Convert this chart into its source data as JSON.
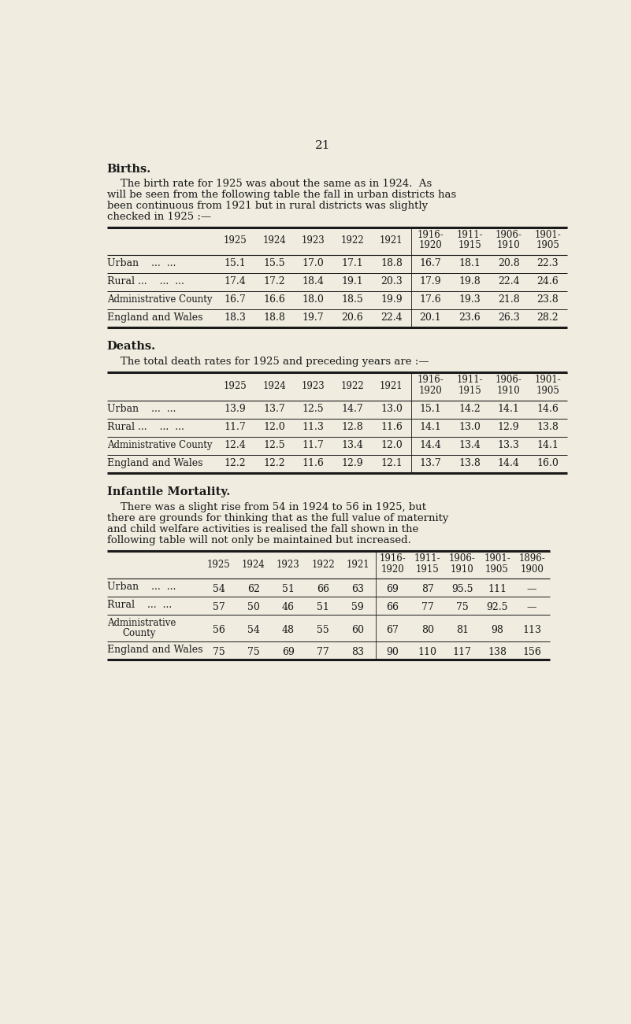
{
  "bg_color": "#f0ece0",
  "text_color": "#1a1a1a",
  "page_number": "21",
  "births_heading": "Births.",
  "births_para_lines": [
    "    The birth rate for 1925 was about the same as in 1924.  As",
    "will be seen from the following table the fall in urban districts has",
    "been continuous from 1921 but in rural districts was slightly",
    "checked in 1925 :—"
  ],
  "births_cols": [
    "1925",
    "1924",
    "1923",
    "1922",
    "1921",
    "1916-\n1920",
    "1911-\n1915",
    "1906-\n1910",
    "1901-\n1905"
  ],
  "births_rows": [
    [
      "Urban    ...  ...",
      "15.1",
      "15.5",
      "17.0",
      "17.1",
      "18.8",
      "16.7",
      "18.1",
      "20.8",
      "22.3"
    ],
    [
      "Rural ...    ...  ...",
      "17.4",
      "17.2",
      "18.4",
      "19.1",
      "20.3",
      "17.9",
      "19.8",
      "22.4",
      "24.6"
    ],
    [
      "Administrative County",
      "16.7",
      "16.6",
      "18.0",
      "18.5",
      "19.9",
      "17.6",
      "19.3",
      "21.8",
      "23.8"
    ],
    [
      "England and Wales",
      "18.3",
      "18.8",
      "19.7",
      "20.6",
      "22.4",
      "20.1",
      "23.6",
      "26.3",
      "28.2"
    ]
  ],
  "deaths_heading": "Deaths.",
  "deaths_para": "    The total death rates for 1925 and preceding years are :—",
  "deaths_cols": [
    "1925",
    "1924",
    "1923",
    "1922",
    "1921",
    "1916-\n1920",
    "1911-\n1915",
    "1906-\n1910",
    "1901-\n1905"
  ],
  "deaths_rows": [
    [
      "Urban    ...  ...",
      "13.9",
      "13.7",
      "12.5",
      "14.7",
      "13.0",
      "15.1",
      "14.2",
      "14.1",
      "14.6"
    ],
    [
      "Rural ...    ...  ...",
      "11.7",
      "12.0",
      "11.3",
      "12.8",
      "11.6",
      "14.1",
      "13.0",
      "12.9",
      "13.8"
    ],
    [
      "Administrative County",
      "12.4",
      "12.5",
      "11.7",
      "13.4",
      "12.0",
      "14.4",
      "13.4",
      "13.3",
      "14.1"
    ],
    [
      "England and Wales",
      "12.2",
      "12.2",
      "11.6",
      "12.9",
      "12.1",
      "13.7",
      "13.8",
      "14.4",
      "16.0"
    ]
  ],
  "infant_heading": "Infantile Mortality.",
  "infant_para_lines": [
    "    There was a slight rise from 54 in 1924 to 56 in 1925, but",
    "there are grounds for thinking that as the full value of maternity",
    "and child welfare activities is realised the fall shown in the",
    "following table will not only be maintained but increased."
  ],
  "infant_cols": [
    "1925",
    "1924",
    "1923",
    "1922",
    "1921",
    "1916-\n1920",
    "1911-\n1915",
    "1906-\n1910",
    "1901-\n1905",
    "1896-\n1900"
  ],
  "infant_rows": [
    [
      "Urban    ...  ...",
      "54",
      "62",
      "51",
      "66",
      "63",
      "69",
      "87",
      "95.5",
      "111",
      "—"
    ],
    [
      "Rural    ...  ...",
      "57",
      "50",
      "46",
      "51",
      "59",
      "66",
      "77",
      "75",
      "92.5",
      "—"
    ],
    [
      "Administrative\nCounty",
      "56",
      "54",
      "48",
      "55",
      "60",
      "67",
      "80",
      "81",
      "98",
      "113"
    ],
    [
      "England and Wales",
      "75",
      "75",
      "69",
      "77",
      "83",
      "90",
      "110",
      "117",
      "138",
      "156"
    ]
  ]
}
